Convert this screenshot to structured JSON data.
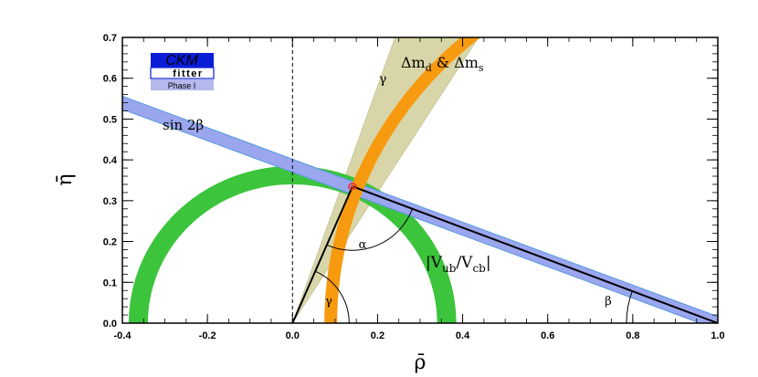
{
  "chart_data": {
    "type": "scatter",
    "title": "",
    "xlabel": "ρ̄",
    "ylabel": "η̄",
    "xlim": [
      -0.4,
      1.0
    ],
    "ylim": [
      0.0,
      0.7
    ],
    "x_ticks": [
      "-0.4",
      "-0.2",
      "0.0",
      "0.2",
      "0.4",
      "0.6",
      "0.8",
      "1.0"
    ],
    "y_ticks": [
      "0.0",
      "0.1",
      "0.2",
      "0.3",
      "0.4",
      "0.5",
      "0.6",
      "0.7"
    ],
    "apex": {
      "rho": 0.141,
      "eta": 0.335
    },
    "reference_line_x": 0.0,
    "constraints": [
      {
        "name": "sin 2β",
        "color": "#9aa6ee",
        "edge_color": "#5599dd",
        "shape": "band",
        "points": [
          [
            1.0,
            0.0
          ],
          [
            -0.4,
            0.54
          ]
        ],
        "half_width": 0.016
      },
      {
        "name": "|Vub/Vcb|",
        "color": "#3cc43c",
        "shape": "annulus",
        "center": [
          0.0,
          0.0
        ],
        "r_inner": 0.34,
        "r_outer": 0.385
      },
      {
        "name": "Δmd & Δms",
        "color": "#f79a10",
        "shape": "annulus",
        "center": [
          1.0,
          0.0
        ],
        "r_inner": 0.895,
        "r_outer": 0.925
      },
      {
        "name": "γ",
        "color": "#d8d6a8",
        "shape": "wedge",
        "apex": [
          0.0,
          0.0
        ],
        "angle_min_deg": 58,
        "angle_max_deg": 71
      },
      {
        "name": "α",
        "color": "#3cc43c",
        "shape": "region"
      }
    ],
    "triangle": [
      [
        0.0,
        0.0
      ],
      [
        1.0,
        0.0
      ],
      [
        0.141,
        0.335
      ]
    ],
    "angle_labels": [
      "α",
      "β",
      "γ"
    ],
    "legend": {
      "logo_top": "CKM",
      "logo_bottom": "fitter",
      "logo_tag": "Phase I",
      "placement": "top-left"
    },
    "labels": {
      "sin2b": "sin 2β",
      "dm_main": "Δm",
      "dm_sub1": "d",
      "dm_amp": " & Δm",
      "dm_sub2": "s",
      "gamma_band": "γ",
      "vub_a": "|V",
      "vub_sub1": "ub",
      "vub_b": "/V",
      "vub_sub2": "cb",
      "vub_c": "|",
      "alpha": "α",
      "beta": "β",
      "gamma_angle": "γ"
    },
    "colors": {
      "sin2b_fill": "#9aa6ee",
      "sin2b_edge": "#5599dd",
      "vub": "#3cc43c",
      "dm": "#f79a10",
      "gamma": "#d8d6a8",
      "apex": "#e03030",
      "logo_blue": "#0a1ed8",
      "logo_tag_bg": "#b4b8ec"
    }
  }
}
